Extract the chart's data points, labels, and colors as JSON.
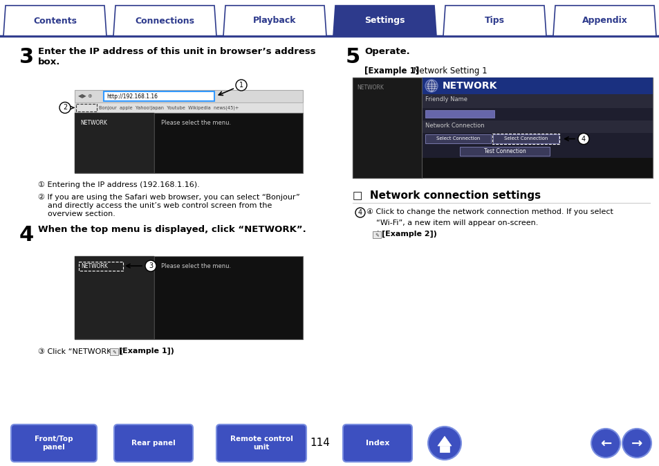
{
  "bg_color": "#ffffff",
  "tab_items": [
    "Contents",
    "Connections",
    "Playback",
    "Settings",
    "Tips",
    "Appendix"
  ],
  "tab_active_idx": 3,
  "tab_color_active": "#2d3a8c",
  "tab_color_inactive": "#ffffff",
  "tab_text_color_active": "#ffffff",
  "tab_text_color_inactive": "#2d3a8c",
  "tab_border_color": "#2d3a8c",
  "page_number": "114",
  "footer_btn_color": "#3d50c0",
  "step3_num": "3",
  "step3_title": "Enter the IP address of this unit in browser’s address\nbox.",
  "step3_note1": "① Entering the IP address (192.168.1.16).",
  "step3_note2": "② If you are using the Safari web browser, you can select “Bonjour”\n    and directly access the unit’s web control screen from the\n    overview section.",
  "step4_num": "4",
  "step4_title": "When the top menu is displayed, click “NETWORK”.",
  "step4_note_pre": "③ Click “NETWORK”. (",
  "step4_note_post": "[Example 1])",
  "step5_num": "5",
  "step5_title": "Operate.",
  "step5_example_bold": "[Example 1]",
  "step5_example_rest": " Network Setting 1",
  "network_section": "□  Network connection settings",
  "network_note_line1": "④ Click to change the network connection method. If you select",
  "network_note_line2": "    “Wi-Fi”, a new item will appear on-screen.",
  "network_note_line3": "    (",
  "network_note_line3b": "[Example 2])",
  "footer_labels": [
    "Front/Top\npanel",
    "Rear panel",
    "Remote control\nunit",
    "Index"
  ]
}
